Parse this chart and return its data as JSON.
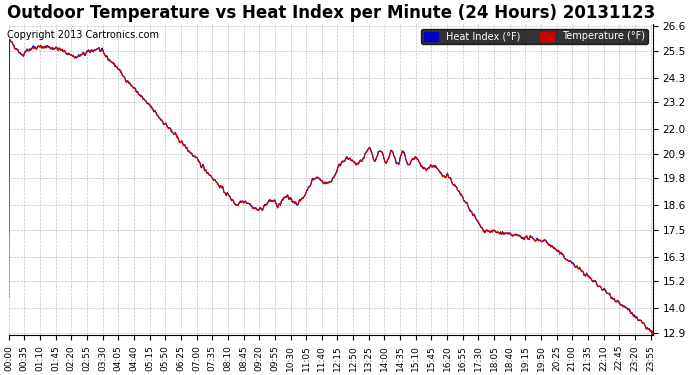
{
  "title": "Outdoor Temperature vs Heat Index per Minute (24 Hours) 20131123",
  "copyright": "Copyright 2013 Cartronics.com",
  "legend_heat_index": "Heat Index (°F)",
  "legend_temperature": "Temperature (°F)",
  "legend_heat_color": "#0000cc",
  "legend_temp_color": "#cc0000",
  "line_color": "#cc0000",
  "y_min": 12.9,
  "y_max": 26.6,
  "y_ticks": [
    12.9,
    14.0,
    15.2,
    16.3,
    17.5,
    18.6,
    19.8,
    20.9,
    22.0,
    23.2,
    24.3,
    25.5,
    26.6
  ],
  "background_color": "#ffffff",
  "grid_color": "#aaaaaa",
  "title_fontsize": 12,
  "copyright_fontsize": 7,
  "x_tick_interval_minutes": 35
}
